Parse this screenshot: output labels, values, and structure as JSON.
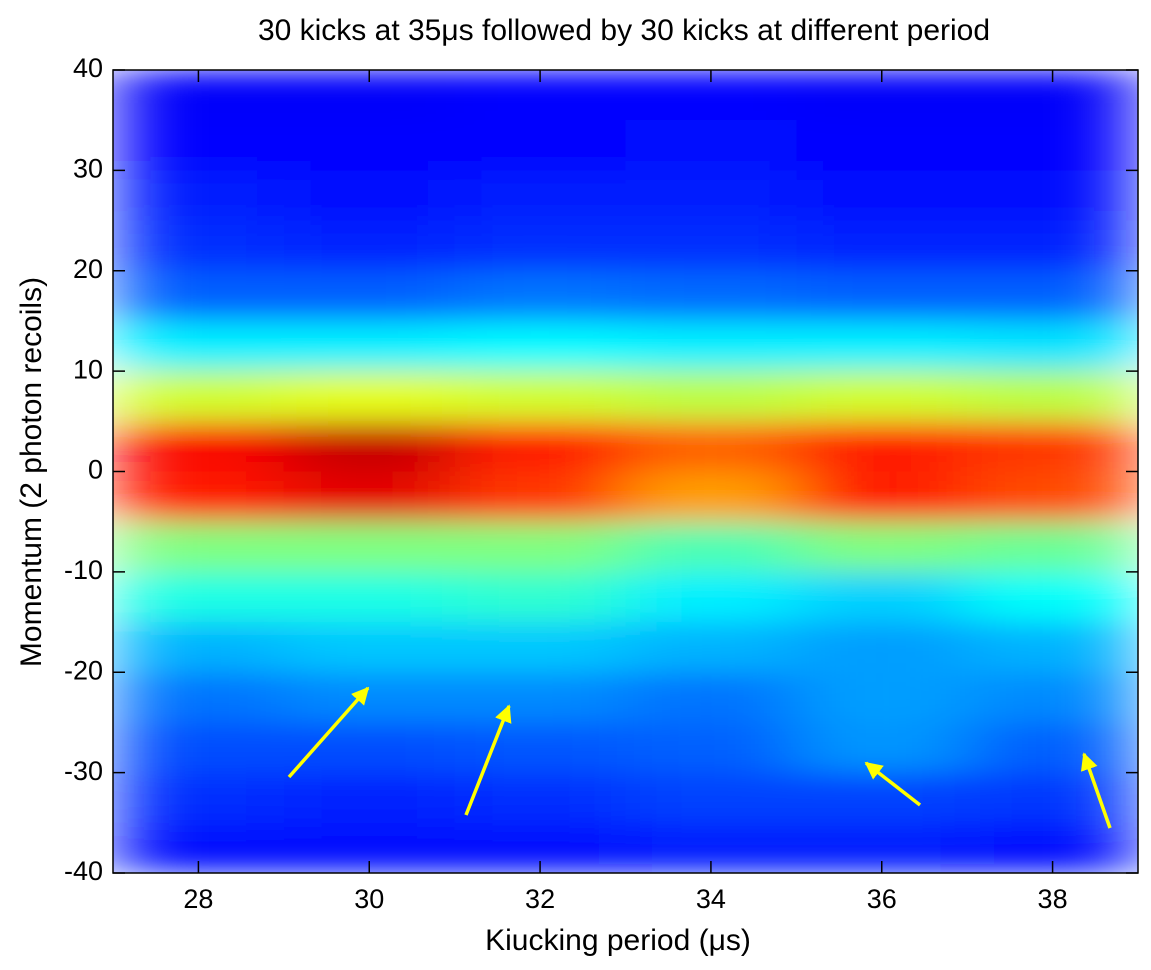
{
  "chart_data": {
    "type": "heatmap",
    "title": "30 kicks at 35μs followed by 30 kicks at different period",
    "xlabel": "Kiucking period (μs)",
    "ylabel": "Momentum (2 photon recoils)",
    "colormap": "jet",
    "x": [
      28,
      30,
      32,
      34,
      36,
      38
    ],
    "y": [
      37.5,
      32.5,
      27.5,
      22.5,
      17.5,
      12.5,
      7.5,
      2.5,
      -2.5,
      -7.5,
      -12.5,
      -17.5,
      -22.5,
      -27.5,
      -32.5,
      -37.5
    ],
    "z": [
      [
        0.12,
        0.12,
        0.13,
        0.13,
        0.12,
        0.12
      ],
      [
        0.13,
        0.13,
        0.13,
        0.14,
        0.13,
        0.13
      ],
      [
        0.15,
        0.14,
        0.15,
        0.15,
        0.14,
        0.14
      ],
      [
        0.17,
        0.16,
        0.17,
        0.17,
        0.16,
        0.16
      ],
      [
        0.22,
        0.22,
        0.24,
        0.23,
        0.22,
        0.22
      ],
      [
        0.36,
        0.36,
        0.37,
        0.36,
        0.36,
        0.35
      ],
      [
        0.58,
        0.6,
        0.58,
        0.56,
        0.58,
        0.56
      ],
      [
        0.88,
        0.93,
        0.85,
        0.78,
        0.85,
        0.82
      ],
      [
        0.85,
        0.9,
        0.82,
        0.72,
        0.85,
        0.8
      ],
      [
        0.5,
        0.5,
        0.5,
        0.45,
        0.5,
        0.48
      ],
      [
        0.4,
        0.4,
        0.42,
        0.36,
        0.33,
        0.38
      ],
      [
        0.3,
        0.32,
        0.32,
        0.3,
        0.28,
        0.3
      ],
      [
        0.24,
        0.26,
        0.26,
        0.24,
        0.28,
        0.26
      ],
      [
        0.2,
        0.2,
        0.21,
        0.22,
        0.27,
        0.22
      ],
      [
        0.17,
        0.16,
        0.17,
        0.19,
        0.19,
        0.18
      ],
      [
        0.14,
        0.14,
        0.14,
        0.15,
        0.15,
        0.14
      ]
    ],
    "xlim": [
      27,
      39
    ],
    "xticks": [
      28,
      30,
      32,
      34,
      36,
      38
    ],
    "ylim": [
      -40,
      40
    ],
    "yticks": [
      -40,
      -30,
      -20,
      -10,
      0,
      10,
      20,
      30,
      40
    ]
  }
}
